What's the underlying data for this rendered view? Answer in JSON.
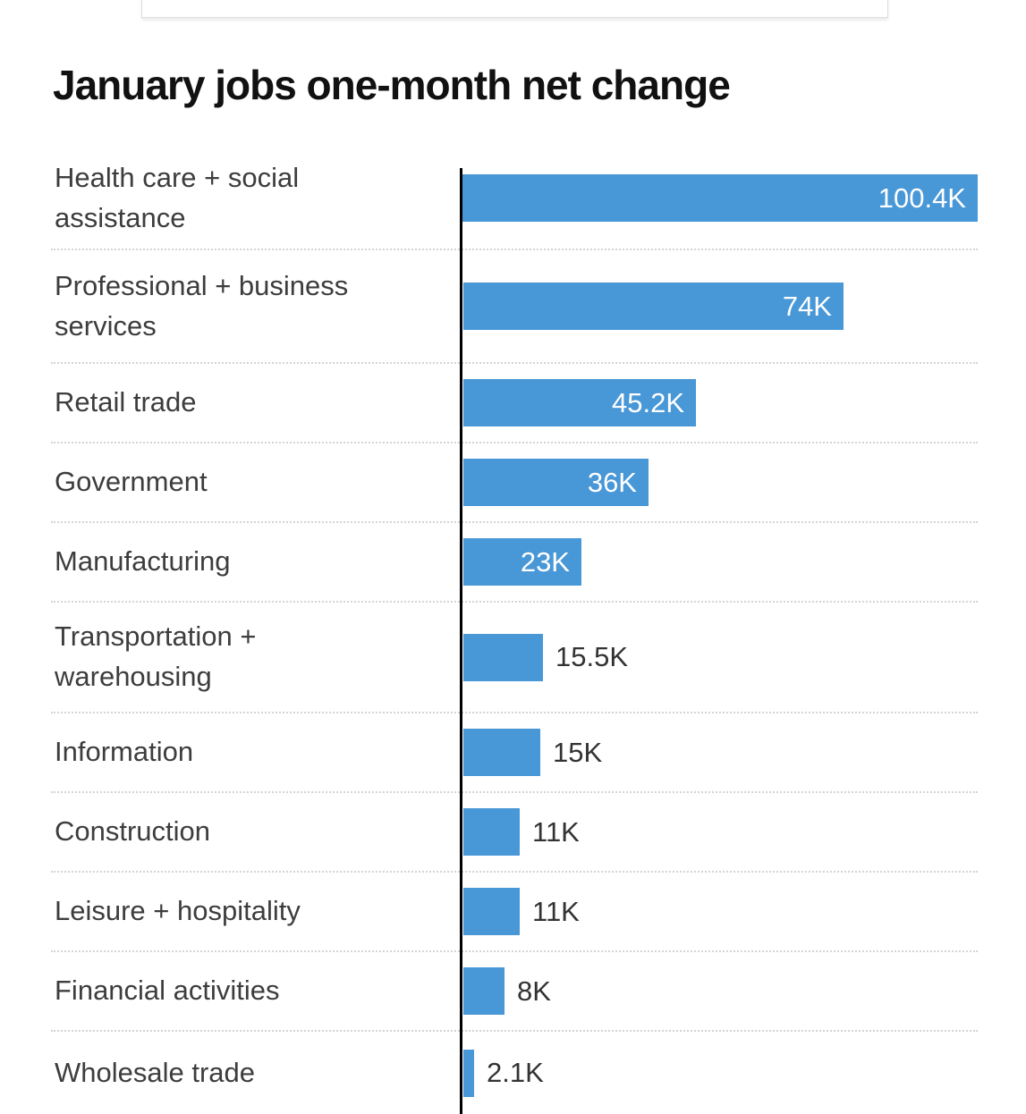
{
  "chart_data": {
    "type": "bar",
    "orientation": "horizontal",
    "title": "January jobs one-month net change",
    "xlabel": "",
    "ylabel": "",
    "xlim": [
      0,
      100.4
    ],
    "grid": "dotted-row-separators",
    "legend": "none",
    "bar_color": "#4897d7",
    "axis_color": "#000000",
    "categories": [
      "Health care + social assistance",
      "Professional + business services",
      "Retail trade",
      "Government",
      "Manufacturing",
      "Transportation + warehousing",
      "Information",
      "Construction",
      "Leisure + hospitality",
      "Financial activities",
      "Wholesale trade"
    ],
    "values": [
      100.4,
      74,
      45.2,
      36,
      23,
      15.5,
      15,
      11,
      11,
      8,
      2.1
    ],
    "value_labels": [
      "100.4K",
      "74K",
      "45.2K",
      "36K",
      "23K",
      "15.5K",
      "15K",
      "11K",
      "11K",
      "8K",
      "2.1K"
    ],
    "rows": [
      {
        "category": "Health care + social\nassistance",
        "value": 100.4,
        "value_label": "100.4K",
        "value_label_position": "inside"
      },
      {
        "category": "Professional + business\nservices",
        "value": 74,
        "value_label": "74K",
        "value_label_position": "inside"
      },
      {
        "category": "Retail trade",
        "value": 45.2,
        "value_label": "45.2K",
        "value_label_position": "inside"
      },
      {
        "category": "Government",
        "value": 36,
        "value_label": "36K",
        "value_label_position": "inside"
      },
      {
        "category": "Manufacturing",
        "value": 23,
        "value_label": "23K",
        "value_label_position": "inside"
      },
      {
        "category": "Transportation +\nwarehousing",
        "value": 15.5,
        "value_label": "15.5K",
        "value_label_position": "outside"
      },
      {
        "category": "Information",
        "value": 15,
        "value_label": "15K",
        "value_label_position": "outside"
      },
      {
        "category": "Construction",
        "value": 11,
        "value_label": "11K",
        "value_label_position": "outside"
      },
      {
        "category": "Leisure + hospitality",
        "value": 11,
        "value_label": "11K",
        "value_label_position": "outside"
      },
      {
        "category": "Financial activities",
        "value": 8,
        "value_label": "8K",
        "value_label_position": "outside"
      },
      {
        "category": "Wholesale trade",
        "value": 2.1,
        "value_label": "2.1K",
        "value_label_position": "outside"
      }
    ]
  }
}
